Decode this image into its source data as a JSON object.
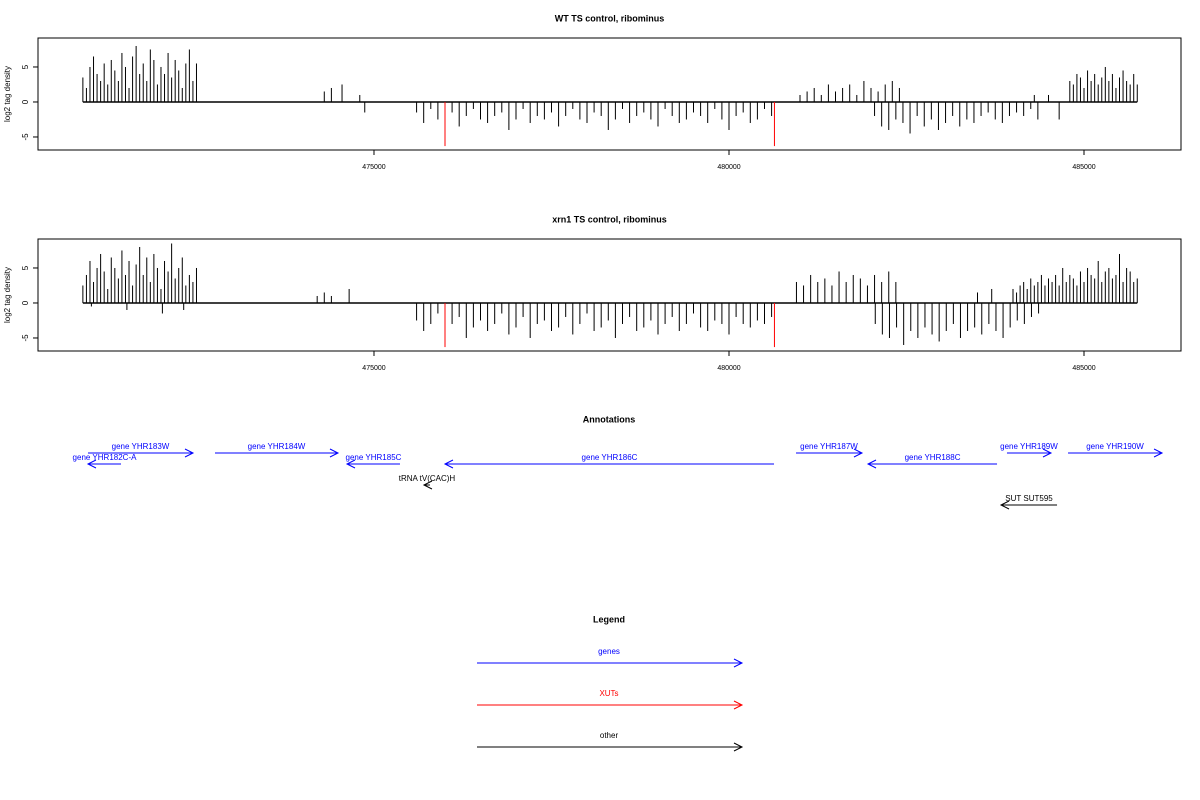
{
  "chart_data": [
    {
      "type": "bar",
      "title": "WT TS control, ribominus",
      "ylabel": "log2 tag density",
      "xlim": [
        470268,
        486366
      ],
      "ylim": [
        -6.86,
        9.14
      ],
      "xticks": [
        475000,
        480000,
        485000
      ],
      "yticks": [
        -5,
        0,
        5
      ],
      "series": [
        {
          "color": "#000000",
          "x": [
            470900,
            470950,
            471000,
            471050,
            471100,
            471150,
            471200,
            471250,
            471300,
            471350,
            471400,
            471450,
            471500,
            471550,
            471600,
            471650,
            471700,
            471750,
            471800,
            471850,
            471900,
            471950,
            472000,
            472050,
            472100,
            472150,
            472200,
            472250,
            472300,
            472350,
            472400,
            472450,
            472500
          ],
          "values": [
            3.5,
            2,
            5,
            6.5,
            4,
            3,
            5.5,
            2.5,
            6,
            4.5,
            3,
            7,
            5,
            2,
            6.5,
            8,
            4,
            5.5,
            3,
            7.5,
            6,
            2.5,
            5,
            4,
            7,
            3.5,
            6,
            4.5,
            2,
            5.5,
            7.5,
            3,
            5.5
          ]
        },
        {
          "color": "#000000",
          "x": [
            474300,
            474400,
            474550,
            474800,
            474870,
            484300,
            484500,
            484650
          ],
          "values": [
            1.5,
            2,
            2.5,
            1,
            -1.5,
            1,
            1,
            -2.5
          ]
        },
        {
          "color": "#000000",
          "x": [
            475600,
            475700,
            475800,
            475900,
            476000,
            476100,
            476200,
            476300,
            476400,
            476500,
            476600,
            476700,
            476800,
            476900,
            477000,
            477100,
            477200,
            477300,
            477400,
            477500,
            477600,
            477700,
            477800,
            477900,
            478000,
            478100,
            478200,
            478300,
            478400,
            478500,
            478600,
            478700,
            478800,
            478900,
            479000,
            479100,
            479200,
            479300,
            479400,
            479500,
            479600,
            479700,
            479800,
            479900,
            480000,
            480100,
            480200,
            480300,
            480400,
            480500,
            480600
          ],
          "values": [
            -1.5,
            -3,
            -1,
            -2.5,
            -2,
            -1.5,
            -3.5,
            -2,
            -1,
            -2.5,
            -3,
            -2,
            -1.5,
            -4,
            -2.5,
            -1,
            -3,
            -2,
            -2.5,
            -1.5,
            -3.5,
            -2,
            -1,
            -2.5,
            -3,
            -1.5,
            -2,
            -4,
            -2.5,
            -1,
            -3,
            -2,
            -1.5,
            -2.5,
            -3.5,
            -1,
            -2,
            -3,
            -2.5,
            -1.5,
            -2,
            -3,
            -1,
            -2.5,
            -4,
            -2,
            -1.5,
            -3,
            -2.5,
            -1,
            -2
          ]
        },
        {
          "color": "#000000",
          "x": [
            481000,
            481100,
            481200,
            481300,
            481400,
            481500,
            481600,
            481700,
            481800,
            481900,
            482000,
            482100,
            482200,
            482300,
            482400
          ],
          "values": [
            1,
            1.5,
            2,
            1,
            2.5,
            1.5,
            2,
            2.5,
            1,
            3,
            2,
            1.5,
            2.5,
            3,
            2
          ]
        },
        {
          "color": "#000000",
          "x": [
            482050,
            482150,
            482250,
            482350,
            482450,
            482550,
            482650,
            482750,
            482850,
            482950,
            483050,
            483150,
            483250,
            483350,
            483450,
            483550,
            483650,
            483750,
            483850,
            483950,
            484050,
            484150,
            484250,
            484350
          ],
          "values": [
            -2,
            -3.5,
            -4,
            -2.5,
            -3,
            -4.5,
            -2,
            -3.5,
            -2.5,
            -4,
            -3,
            -2,
            -3.5,
            -2.5,
            -3,
            -2,
            -1.5,
            -2.5,
            -3,
            -2,
            -1.5,
            -2,
            -1,
            -2.5
          ]
        },
        {
          "color": "#000000",
          "x": [
            484800,
            484850,
            484900,
            484950,
            485000,
            485050,
            485100,
            485150,
            485200,
            485250,
            485300,
            485350,
            485400,
            485450,
            485500,
            485550,
            485600,
            485650,
            485700,
            485750
          ],
          "values": [
            3,
            2.5,
            4,
            3.5,
            2,
            4.5,
            3,
            4,
            2.5,
            3.5,
            5,
            3,
            4,
            2,
            3.5,
            4.5,
            3,
            2.5,
            4,
            2.5
          ]
        },
        {
          "color": "#ff0000",
          "x": [
            476000,
            480640
          ],
          "values": [
            -6.3,
            -6.3
          ]
        }
      ]
    },
    {
      "type": "bar",
      "title": "xrn1 TS control, ribominus",
      "ylabel": "log2 tag density",
      "xlim": [
        470268,
        486366
      ],
      "ylim": [
        -6.86,
        9.14
      ],
      "xticks": [
        475000,
        480000,
        485000
      ],
      "yticks": [
        -5,
        0,
        5
      ],
      "series": [
        {
          "color": "#000000",
          "x": [
            470900,
            470950,
            471000,
            471050,
            471100,
            471150,
            471200,
            471250,
            471300,
            471350,
            471400,
            471450,
            471500,
            471550,
            471600,
            471650,
            471700,
            471750,
            471800,
            471850,
            471900,
            471950,
            472000,
            472050,
            472100,
            472150,
            472200,
            472250,
            472300,
            472350,
            472400,
            472450,
            472500
          ],
          "values": [
            2.5,
            4,
            6,
            3,
            5,
            7,
            4.5,
            2,
            6.5,
            5,
            3.5,
            7.5,
            4,
            6,
            2.5,
            5.5,
            8,
            4,
            6.5,
            3,
            7,
            5,
            2,
            6,
            4.5,
            8.5,
            3.5,
            5,
            6.5,
            2.5,
            4,
            3,
            5
          ]
        },
        {
          "color": "#000000",
          "x": [
            471020,
            471520,
            472020,
            472320,
            474200,
            474300,
            474400,
            474650,
            483500,
            483700
          ],
          "values": [
            -0.5,
            -1,
            -1.5,
            -1,
            1,
            1.5,
            1,
            2,
            1.5,
            2
          ]
        },
        {
          "color": "#000000",
          "x": [
            475600,
            475700,
            475800,
            475900,
            476000,
            476100,
            476200,
            476300,
            476400,
            476500,
            476600,
            476700,
            476800,
            476900,
            477000,
            477100,
            477200,
            477300,
            477400,
            477500,
            477600,
            477700,
            477800,
            477900,
            478000,
            478100,
            478200,
            478300,
            478400,
            478500,
            478600,
            478700,
            478800,
            478900,
            479000,
            479100,
            479200,
            479300,
            479400,
            479500,
            479600,
            479700,
            479800,
            479900,
            480000,
            480100,
            480200,
            480300,
            480400,
            480500,
            480600
          ],
          "values": [
            -2.5,
            -4,
            -3,
            -1.5,
            -4.5,
            -3,
            -2,
            -5,
            -3.5,
            -2.5,
            -4,
            -3,
            -1.5,
            -4.5,
            -3.5,
            -2,
            -5,
            -3,
            -2.5,
            -4,
            -3.5,
            -2,
            -4.5,
            -3,
            -1.5,
            -4,
            -3.5,
            -2.5,
            -5,
            -3,
            -2,
            -4,
            -3.5,
            -2.5,
            -4.5,
            -3,
            -2,
            -4,
            -3,
            -1.5,
            -3.5,
            -4,
            -2.5,
            -3,
            -4.5,
            -2,
            -3,
            -3.5,
            -2.5,
            -3,
            -2
          ]
        },
        {
          "color": "#000000",
          "x": [
            480950,
            481050,
            481150,
            481250,
            481350,
            481450,
            481550,
            481650,
            481750,
            481850,
            481950,
            482050,
            482150,
            482250,
            482350
          ],
          "values": [
            3,
            2.5,
            4,
            3,
            3.5,
            2.5,
            4.5,
            3,
            4,
            3.5,
            2.5,
            4,
            3,
            4.5,
            3
          ]
        },
        {
          "color": "#000000",
          "x": [
            482060,
            482160,
            482260,
            482360,
            482460,
            482560,
            482660,
            482760,
            482860,
            482960,
            483060,
            483160,
            483260,
            483360,
            483460,
            483560,
            483660,
            483760,
            483860,
            483960,
            484060,
            484160,
            484260,
            484360
          ],
          "values": [
            -3,
            -4.5,
            -5,
            -3.5,
            -6,
            -4,
            -5,
            -3.5,
            -4.5,
            -5.5,
            -4,
            -3,
            -5,
            -4,
            -3.5,
            -4.5,
            -3,
            -4,
            -5,
            -3.5,
            -2.5,
            -3,
            -2,
            -1.5
          ]
        },
        {
          "color": "#000000",
          "x": [
            484000,
            484050,
            484100,
            484150,
            484200,
            484250,
            484300,
            484350,
            484400,
            484450,
            484500,
            484550,
            484600,
            484650,
            484700,
            484750,
            484800,
            484850,
            484900,
            484950,
            485000,
            485050,
            485100,
            485150,
            485200,
            485250,
            485300,
            485350,
            485400,
            485450,
            485500,
            485550,
            485600,
            485650,
            485700,
            485750
          ],
          "values": [
            2,
            1.5,
            2.5,
            3,
            2,
            3.5,
            2.5,
            3,
            4,
            2.5,
            3.5,
            3,
            4,
            2.5,
            5,
            3,
            4,
            3.5,
            2.5,
            4.5,
            3,
            5,
            4,
            3.5,
            6,
            3,
            4.5,
            5,
            3.5,
            4,
            7,
            3,
            5,
            4.5,
            3,
            3.5
          ]
        },
        {
          "color": "#ff0000",
          "x": [
            476000,
            480640
          ],
          "values": [
            -6.3,
            -6.3
          ]
        }
      ]
    }
  ],
  "annotations": {
    "title": "Annotations",
    "features": [
      {
        "label": "gene YHR183W",
        "color": "#0000ff",
        "start": 470972,
        "end": 472451
      },
      {
        "label": "gene YHR182C-A",
        "color": "#0000ff",
        "start": 471437,
        "end": 470972
      },
      {
        "label": "gene YHR184W",
        "color": "#0000ff",
        "start": 472761,
        "end": 474493
      },
      {
        "label": "gene YHR185C",
        "color": "#0000ff",
        "start": 475366,
        "end": 474620
      },
      {
        "label": "gene YHR186C",
        "color": "#0000ff",
        "start": 480634,
        "end": 476000
      },
      {
        "label": "tRNA tV(CAC)H",
        "color": "#000000",
        "start": 475789,
        "end": 475704
      },
      {
        "label": "gene YHR187W",
        "color": "#0000ff",
        "start": 480944,
        "end": 481873
      },
      {
        "label": "gene YHR188C",
        "color": "#0000ff",
        "start": 483775,
        "end": 481958
      },
      {
        "label": "gene YHR189W",
        "color": "#0000ff",
        "start": 483915,
        "end": 484535
      },
      {
        "label": "gene YHR190W",
        "color": "#0000ff",
        "start": 484775,
        "end": 486099
      },
      {
        "label": "SUT SUT595",
        "color": "#000000",
        "start": 484620,
        "end": 483831
      }
    ]
  },
  "legend": {
    "title": "Legend",
    "items": [
      {
        "label": "genes",
        "color": "#0000ff"
      },
      {
        "label": "XUTs",
        "color": "#ff0000"
      },
      {
        "label": "other",
        "color": "#000000"
      }
    ]
  }
}
